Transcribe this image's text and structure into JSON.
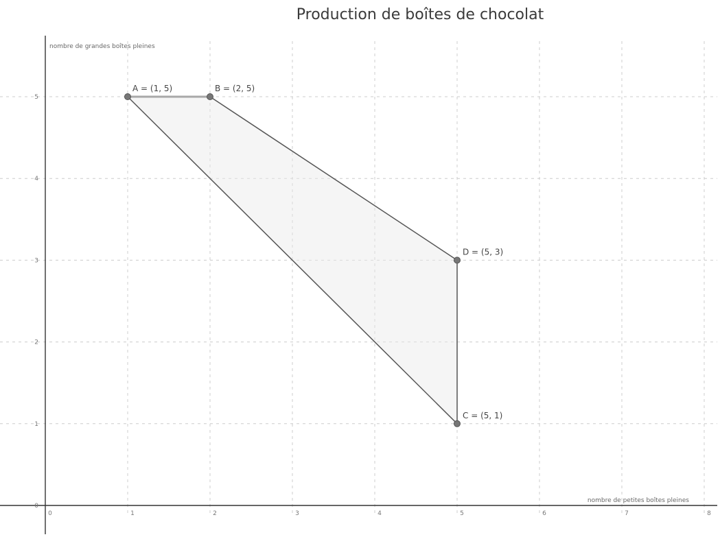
{
  "chart_data": {
    "type": "scatter",
    "title": "Production de boîtes de chocolat",
    "xlabel": "nombre de petites boîtes pleines",
    "ylabel": "nombre de grandes boîtes pleines",
    "xlim": [
      0,
      8
    ],
    "ylim": [
      0,
      5
    ],
    "xticks": [
      "0",
      "1",
      "2",
      "3",
      "4",
      "5",
      "6",
      "7",
      "8"
    ],
    "yticks": [
      "0",
      "1",
      "2",
      "3",
      "4",
      "5"
    ],
    "grid": true,
    "points": [
      {
        "name": "A",
        "x": 1,
        "y": 5,
        "label": "A = (1, 5)"
      },
      {
        "name": "B",
        "x": 2,
        "y": 5,
        "label": "B = (2, 5)"
      },
      {
        "name": "D",
        "x": 5,
        "y": 3,
        "label": "D = (5, 3)"
      },
      {
        "name": "C",
        "x": 5,
        "y": 1,
        "label": "C = (5, 1)"
      }
    ],
    "polygon": [
      "A",
      "B",
      "D",
      "C"
    ],
    "colors": {
      "fill": "#e8e8e8",
      "edge": "#555555",
      "edge_light": "#a8a8a8",
      "point": "#777777",
      "grid": "#cccccc",
      "axis": "#333333"
    }
  }
}
